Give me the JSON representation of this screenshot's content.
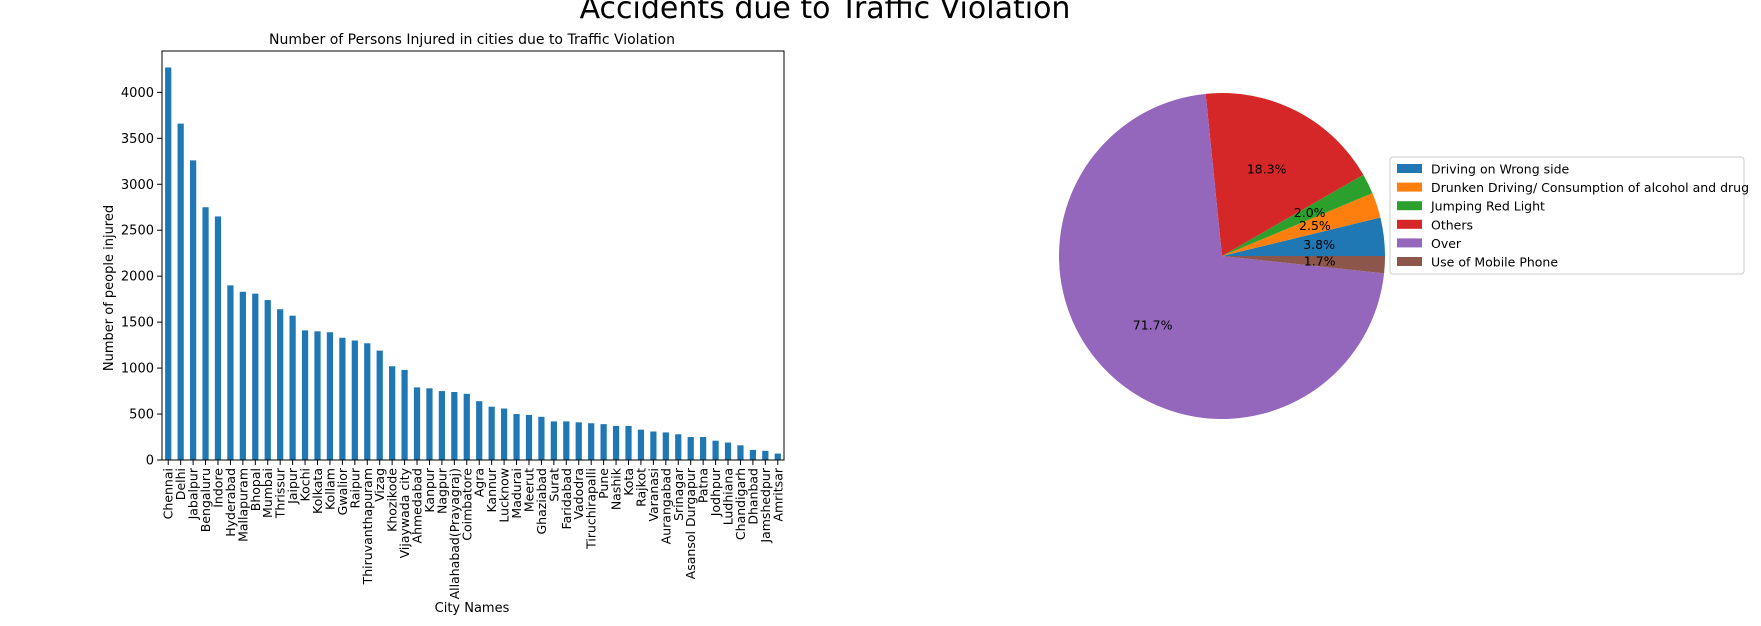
{
  "figure": {
    "suptitle": "Accidents due to Traffic Violation"
  },
  "chart_data": [
    {
      "type": "bar",
      "title": "Number of Persons Injured in cities due to Traffic Violation",
      "xlabel": "City Names",
      "ylabel": "Number of people injured",
      "ylim": [
        0,
        4450
      ],
      "yticks": [
        0,
        500,
        1000,
        1500,
        2000,
        2500,
        3000,
        3500,
        4000
      ],
      "grid": false,
      "color": "#1f77b4",
      "categories": [
        "Chennai",
        "Delhi",
        "Jabalpur",
        "Bengaluru",
        "Indore",
        "Hyderabad",
        "Mallapuram",
        "Bhopal",
        "Mumbai",
        "Thrissur",
        "Jaipur",
        "Kochi",
        "Kolkata",
        "Kollam",
        "Gwalior",
        "Raipur",
        "Thiruvanthapuram",
        "Vizag",
        "Khozikode",
        "Vijaywada city",
        "Ahmedabad",
        "Kanpur",
        "Nagpur",
        "Allahabad(Prayagraj)",
        "Coimbatore",
        "Agra",
        "Kannur",
        "Lucknow",
        "Madurai",
        "Meerut",
        "Ghaziabad",
        "Surat",
        "Faridabad",
        "Vadodra",
        "Tiruchirapalli",
        "Pune",
        "Nashik",
        "Kota",
        "Rajkot",
        "Varanasi",
        "Aurangabad",
        "Srinagar",
        "Asansol Durgapur",
        "Patna",
        "Jodhpur",
        "Ludhiana",
        "Chandigarh",
        "Dhanbad",
        "Jamshedpur",
        "Amritsar"
      ],
      "values": [
        4270,
        3660,
        3260,
        2750,
        2650,
        1900,
        1830,
        1810,
        1740,
        1640,
        1570,
        1410,
        1400,
        1390,
        1330,
        1300,
        1270,
        1190,
        1020,
        980,
        790,
        780,
        750,
        740,
        720,
        640,
        580,
        560,
        500,
        490,
        470,
        420,
        420,
        410,
        400,
        390,
        370,
        370,
        330,
        310,
        300,
        280,
        250,
        250,
        210,
        190,
        160,
        110,
        100,
        70
      ]
    },
    {
      "type": "pie",
      "labels": [
        "Driving on Wrong side",
        "Drunken Driving/ Consumption of alcohol and drug",
        "Jumping Red Light",
        "Others",
        "Over",
        "Use of Mobile Phone"
      ],
      "values": [
        3.8,
        2.5,
        2.0,
        18.3,
        71.7,
        1.7
      ],
      "autopct": [
        "3.8%",
        "2.5%",
        "2.0%",
        "18.3%",
        "71.7%",
        "1.7%"
      ],
      "colors": [
        "#1f77b4",
        "#ff7f0e",
        "#2ca02c",
        "#d62728",
        "#9467bd",
        "#8c564b"
      ],
      "start_angle": 0,
      "legend_position": "right"
    }
  ]
}
